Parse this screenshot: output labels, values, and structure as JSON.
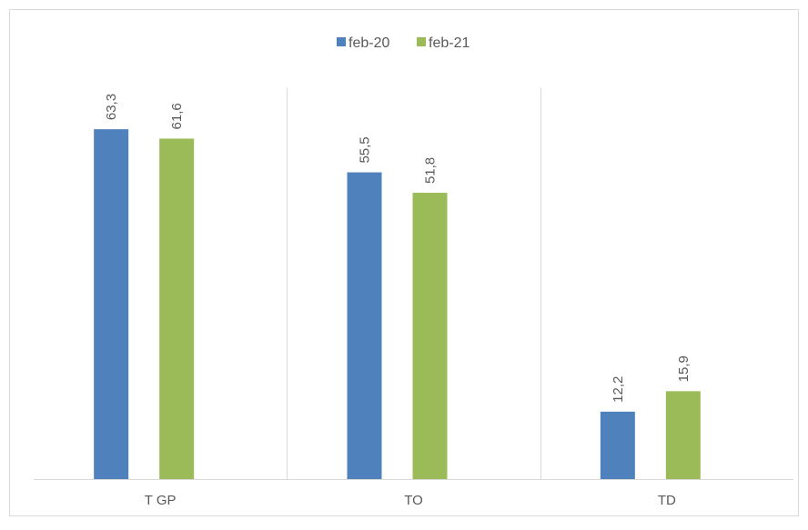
{
  "chart_data": {
    "type": "bar",
    "categories": [
      "T GP",
      "TO",
      "TD"
    ],
    "series": [
      {
        "name": "feb-20",
        "values": [
          63.3,
          55.5,
          12.2
        ],
        "labels": [
          "63,3",
          "55,5",
          "12,2"
        ],
        "color": "#4f81bd"
      },
      {
        "name": "feb-21",
        "values": [
          61.6,
          51.8,
          15.9
        ],
        "labels": [
          "61,6",
          "51,8",
          "15,9"
        ],
        "color": "#9bbb59"
      }
    ],
    "title": "",
    "xlabel": "",
    "ylabel": "",
    "ylim": [
      0,
      70
    ],
    "grid": false,
    "category_separators": true,
    "legend_position": "top-center",
    "data_label_rotation": "vertical"
  }
}
